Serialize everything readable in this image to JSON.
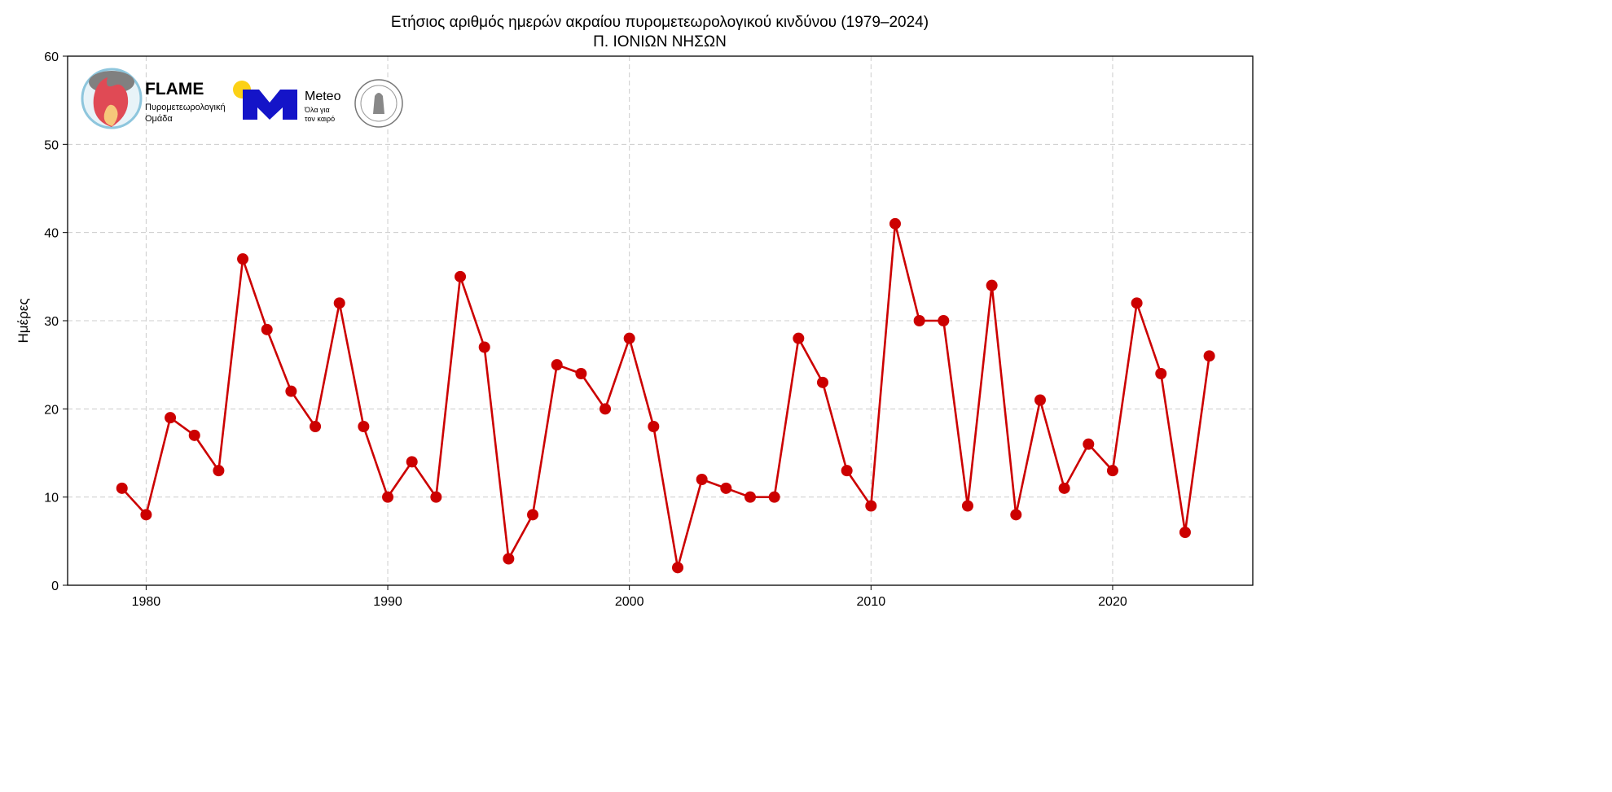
{
  "chart_data": {
    "type": "line",
    "title": "Ετήσιος αριθμός ημερών ακραίου πυρομετεωρολογικού κινδύνου (1979–2024)",
    "subtitle": "Π. ΙΟΝΙΩΝ ΝΗΣΩΝ",
    "xlabel": "",
    "ylabel": "Ημέρες",
    "xlim": [
      1976.75,
      2025.8
    ],
    "ylim": [
      0,
      60
    ],
    "xticks": [
      1980,
      1990,
      2000,
      2010,
      2020
    ],
    "yticks": [
      0,
      10,
      20,
      30,
      40,
      50,
      60
    ],
    "grid": true,
    "color": "#cc0000",
    "x": [
      1979,
      1980,
      1981,
      1982,
      1983,
      1984,
      1985,
      1986,
      1987,
      1988,
      1989,
      1990,
      1991,
      1992,
      1993,
      1994,
      1995,
      1996,
      1997,
      1998,
      1999,
      2000,
      2001,
      2002,
      2003,
      2004,
      2005,
      2006,
      2007,
      2008,
      2009,
      2010,
      2011,
      2012,
      2013,
      2014,
      2015,
      2016,
      2017,
      2018,
      2019,
      2020,
      2021,
      2022,
      2023,
      2024
    ],
    "y": [
      11,
      8,
      19,
      17,
      13,
      37,
      29,
      22,
      18,
      32,
      18,
      10,
      14,
      10,
      35,
      27,
      3,
      8,
      25,
      24,
      20,
      28,
      18,
      2,
      12,
      11,
      10,
      10,
      28,
      23,
      13,
      9,
      41,
      30,
      30,
      9,
      34,
      8,
      21,
      11,
      16,
      13,
      32,
      24,
      6,
      26
    ]
  },
  "logos": {
    "flame_name": "FLAME",
    "flame_sub1": "Πυρομετεωρολογική",
    "flame_sub2": "Ομάδα",
    "meteo_name": "Meteo",
    "meteo_sub1": "Όλα για",
    "meteo_sub2": "τον καιρό"
  }
}
